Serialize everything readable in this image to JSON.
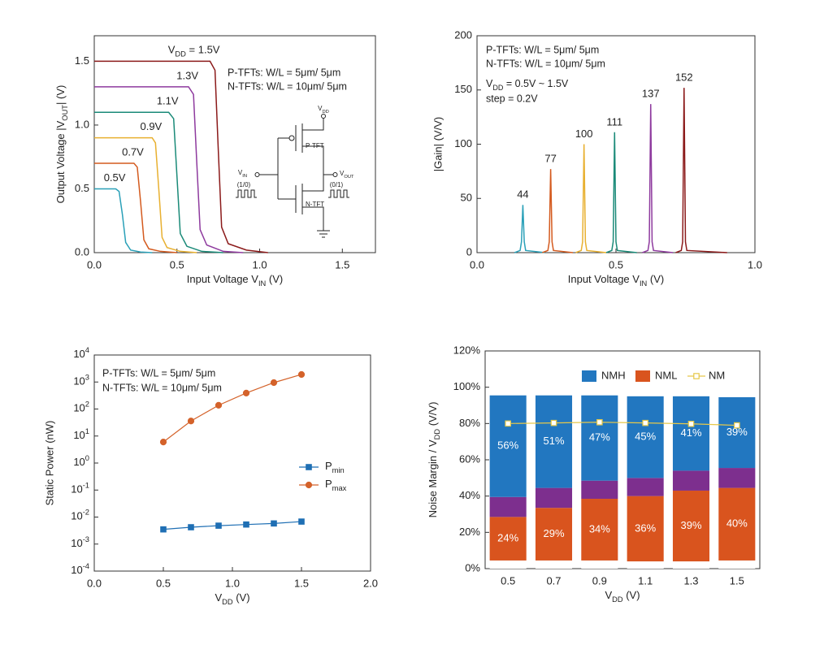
{
  "chart_data": [
    {
      "type": "line",
      "x_label": [
        "Input Voltage V",
        "IN",
        " (V)"
      ],
      "y_label": [
        "Output Voltage |V",
        "OUT",
        "| (V)"
      ],
      "xlim": [
        0,
        1.7
      ],
      "ylim": [
        0,
        1.7
      ],
      "xticks": [
        {
          "value": 0,
          "label": "0.0"
        },
        0.5,
        {
          "value": 1,
          "label": "1.0"
        },
        1.5
      ],
      "yticks": [
        {
          "value": 0,
          "label": "0.0"
        },
        0.5,
        {
          "value": 1,
          "label": "1.0"
        },
        1.5
      ],
      "legend": "curve",
      "annotations": [
        "P-TFTs: W/L = 5μm/ 5μm",
        "N-TFTs: W/L = 10μm/ 5μm"
      ],
      "inset_labels": [
        [
          "V",
          "DD"
        ],
        "P-TFT",
        [
          "V",
          "IN"
        ],
        "(1/0)",
        [
          "V",
          "OUT"
        ],
        "(0/1)",
        "N-TFT"
      ],
      "series": [
        {
          "name": "0.5V",
          "color": "#2aa0b8",
          "x": [
            0,
            0.13,
            0.15,
            0.17,
            0.19,
            0.22,
            0.28,
            0.35
          ],
          "values": [
            0.5,
            0.5,
            0.48,
            0.3,
            0.08,
            0.02,
            0.005,
            0
          ]
        },
        {
          "name": "0.7V",
          "color": "#d45a1e",
          "x": [
            0,
            0.24,
            0.26,
            0.28,
            0.3,
            0.33,
            0.4,
            0.5
          ],
          "values": [
            0.7,
            0.7,
            0.67,
            0.4,
            0.1,
            0.03,
            0.01,
            0
          ]
        },
        {
          "name": "0.9V",
          "color": "#e8b030",
          "x": [
            0,
            0.35,
            0.37,
            0.39,
            0.41,
            0.44,
            0.52,
            0.62
          ],
          "values": [
            0.9,
            0.9,
            0.86,
            0.5,
            0.12,
            0.04,
            0.01,
            0
          ]
        },
        {
          "name": "1.1V",
          "color": "#1a8a78",
          "x": [
            0,
            0.45,
            0.48,
            0.5,
            0.52,
            0.56,
            0.65,
            0.78
          ],
          "values": [
            1.1,
            1.1,
            1.05,
            0.6,
            0.15,
            0.05,
            0.01,
            0
          ]
        },
        {
          "name": "1.3V",
          "color": "#8e3a9e",
          "x": [
            0,
            0.57,
            0.6,
            0.62,
            0.64,
            0.68,
            0.78,
            0.9
          ],
          "values": [
            1.3,
            1.3,
            1.24,
            0.7,
            0.18,
            0.06,
            0.01,
            0
          ]
        },
        {
          "name": [
            "V",
            "DD",
            " = 1.5V"
          ],
          "color": "#8b1a1a",
          "x": [
            0,
            0.7,
            0.73,
            0.75,
            0.77,
            0.81,
            0.92,
            1.05
          ],
          "values": [
            1.5,
            1.5,
            1.43,
            0.8,
            0.2,
            0.07,
            0.02,
            0
          ]
        }
      ]
    },
    {
      "type": "line",
      "x_label": [
        "Input Voltage V",
        "IN",
        " (V)"
      ],
      "y_label": "|Gain| (V/V)",
      "xlim": [
        0,
        1
      ],
      "ylim": [
        0,
        200
      ],
      "xticks": [
        {
          "value": 0,
          "label": "0.0"
        },
        0.5,
        {
          "value": 1,
          "label": "1.0"
        }
      ],
      "yticks": [
        0,
        50,
        100,
        150,
        200
      ],
      "data_labels": true,
      "annotations": [
        "P-TFTs: W/L = 5μm/ 5μm",
        "N-TFTs: W/L = 10μm/ 5μm",
        [
          "V",
          "DD",
          " = 0.5V ~ 1.5V"
        ],
        "step = 0.2V"
      ],
      "series": [
        {
          "color": "#2aa0b8",
          "x": [
            0.135,
            0.155,
            0.16,
            0.165,
            0.17,
            0.175,
            0.245
          ],
          "values": [
            0,
            2,
            10,
            44,
            10,
            2,
            0
          ]
        },
        {
          "color": "#d45a1e",
          "x": [
            0.235,
            0.255,
            0.26,
            0.265,
            0.27,
            0.275,
            0.345
          ],
          "values": [
            0,
            2,
            10,
            77,
            10,
            2,
            0
          ]
        },
        {
          "color": "#e8b030",
          "x": [
            0.355,
            0.375,
            0.38,
            0.385,
            0.39,
            0.395,
            0.465
          ],
          "values": [
            0,
            2,
            10,
            100,
            10,
            2,
            0
          ]
        },
        {
          "color": "#1a8a78",
          "x": [
            0.465,
            0.485,
            0.49,
            0.495,
            0.5,
            0.505,
            0.575
          ],
          "values": [
            0,
            2,
            10,
            111,
            10,
            2,
            0
          ]
        },
        {
          "color": "#8e3a9e",
          "x": [
            0.595,
            0.615,
            0.62,
            0.625,
            0.63,
            0.635,
            0.705
          ],
          "values": [
            0,
            2,
            10,
            137,
            10,
            2,
            0
          ]
        },
        {
          "color": "#8b1a1a",
          "x": [
            0.715,
            0.735,
            0.74,
            0.745,
            0.75,
            0.755,
            0.9
          ],
          "values": [
            0,
            2,
            10,
            152,
            10,
            2,
            0
          ]
        }
      ]
    },
    {
      "type": "line",
      "log_y": true,
      "x_label": [
        "V",
        "DD",
        " (V)"
      ],
      "y_label": "Static Power (nW)",
      "xlim": [
        0,
        2
      ],
      "ylim": [
        0.0001,
        10000
      ],
      "xticks": [
        {
          "value": 0,
          "label": "0.0"
        },
        0.5,
        {
          "value": 1,
          "label": "1.0"
        },
        1.5,
        {
          "value": 2,
          "label": "2.0"
        }
      ],
      "yticks": [
        {
          "value": 0.0001,
          "label": [
            "10",
            "-4"
          ]
        },
        {
          "value": 0.001,
          "label": [
            "10",
            "-3"
          ]
        },
        {
          "value": 0.01,
          "label": [
            "10",
            "-2"
          ]
        },
        {
          "value": 0.1,
          "label": [
            "10",
            "-1"
          ]
        },
        {
          "value": 1,
          "label": [
            "10",
            "0"
          ]
        },
        {
          "value": 10,
          "label": [
            "10",
            "1"
          ]
        },
        {
          "value": 100,
          "label": [
            "10",
            "2"
          ]
        },
        {
          "value": 1000,
          "label": [
            "10",
            "3"
          ]
        },
        {
          "value": 10000,
          "label": [
            "10",
            "4"
          ]
        }
      ],
      "legend": "right",
      "annotations": [
        "P-TFTs: W/L = 5μm/ 5μm",
        "N-TFTs: W/L = 10μm/ 5μm"
      ],
      "x": [
        0.5,
        0.7,
        0.9,
        1.1,
        1.3,
        1.5
      ],
      "series": [
        {
          "name": [
            "P",
            "min"
          ],
          "color": "#1f6fb4",
          "marker": "square",
          "values": [
            0.0035,
            0.0042,
            0.0048,
            0.0053,
            0.0058,
            0.0068
          ]
        },
        {
          "name": [
            "P",
            "max"
          ],
          "color": "#d4622a",
          "marker": "circle",
          "values": [
            6,
            36,
            138,
            390,
            950,
            1900
          ]
        }
      ]
    },
    {
      "type": "bar",
      "stacked": true,
      "x_label": [
        "V",
        "DD",
        " (V)"
      ],
      "y_label": [
        "Noise Margin / V",
        "DD",
        " (V/V)"
      ],
      "categories": [
        "0.5",
        "0.7",
        "0.9",
        "1.1",
        "1.3",
        "1.5"
      ],
      "ylim": [
        0,
        120
      ],
      "yticks": [
        {
          "value": 0,
          "label": "0%"
        },
        {
          "value": 20,
          "label": "20%"
        },
        {
          "value": 40,
          "label": "40%"
        },
        {
          "value": 60,
          "label": "60%"
        },
        {
          "value": 80,
          "label": "80%"
        },
        {
          "value": 100,
          "label": "100%"
        },
        {
          "value": 120,
          "label": "120%"
        }
      ],
      "legend": "top",
      "series": [
        {
          "color": "#ffffff",
          "values": [
            4.5,
            4.5,
            4.5,
            4,
            4,
            4.5
          ]
        },
        {
          "name": "NML",
          "color": "#d9541e",
          "values": [
            24,
            29,
            34,
            36,
            39,
            40
          ],
          "value_labels": [
            "24%",
            "29%",
            "34%",
            "36%",
            "39%",
            "40%"
          ]
        },
        {
          "color": "#7d2f8e",
          "values": [
            11,
            11,
            10,
            10,
            11,
            11
          ]
        },
        {
          "name": "NMH",
          "color": "#2277c0",
          "values": [
            56,
            51,
            47,
            45,
            41,
            39
          ],
          "value_labels": [
            "56%",
            "51%",
            "47%",
            "45%",
            "41%",
            "39%"
          ]
        },
        {
          "name": "NM",
          "type": "line",
          "marker": "square",
          "color": "#e6c84a",
          "values": [
            80,
            80.3,
            80.7,
            80.3,
            79.8,
            79
          ]
        }
      ]
    }
  ]
}
